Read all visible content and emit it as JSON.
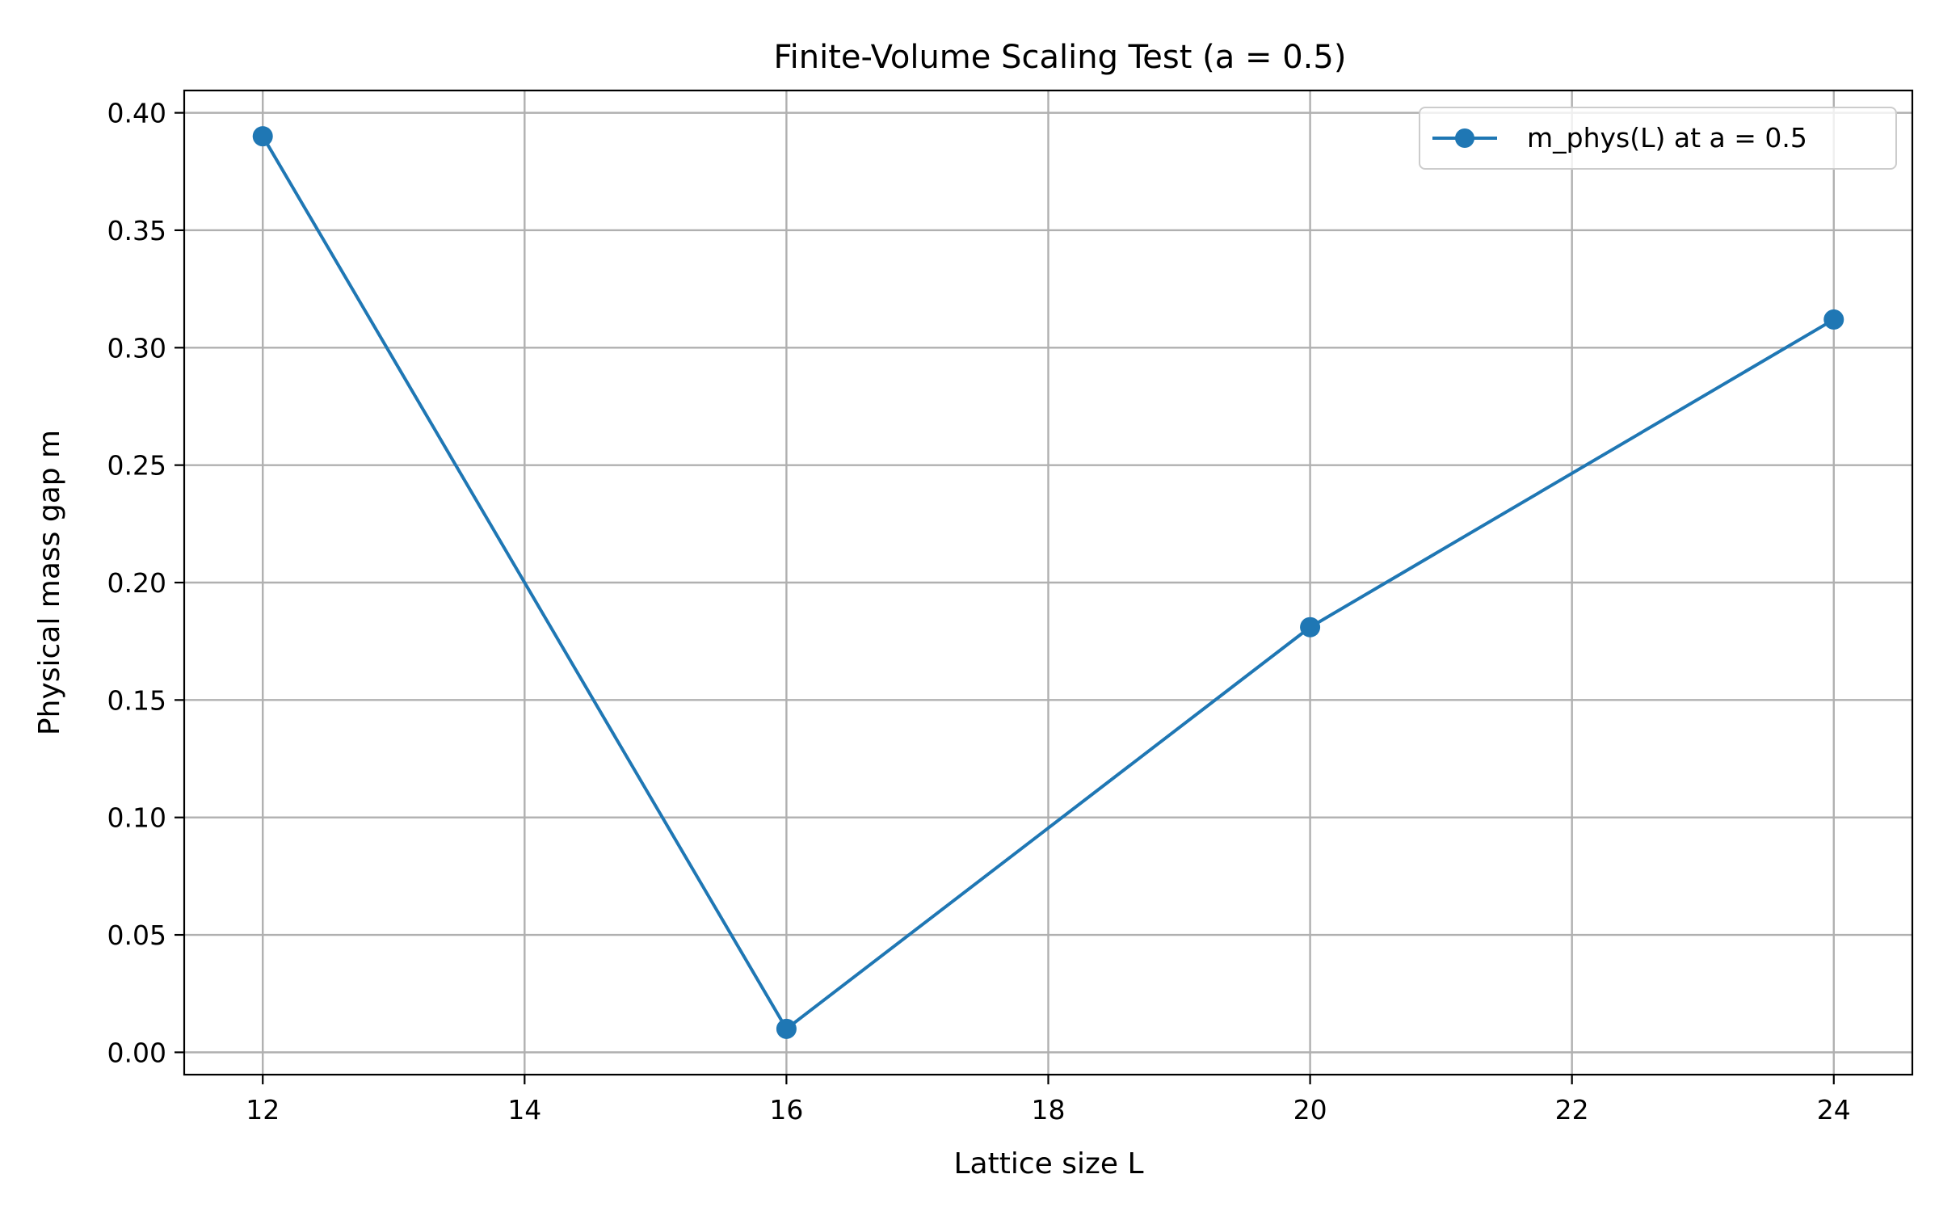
{
  "chart_data": {
    "type": "line",
    "title": "Finite-Volume Scaling Test (a = 0.5)",
    "xlabel": "Lattice size L",
    "ylabel": "Physical mass gap m",
    "xlim": [
      11.4,
      24.6
    ],
    "ylim": [
      -0.0095,
      0.4095
    ],
    "xticks": [
      12,
      14,
      16,
      18,
      20,
      22,
      24
    ],
    "yticks": [
      0.0,
      0.05,
      0.1,
      0.15,
      0.2,
      0.25,
      0.3,
      0.35,
      0.4
    ],
    "xtick_labels": [
      "12",
      "14",
      "16",
      "18",
      "20",
      "22",
      "24"
    ],
    "ytick_labels": [
      "0.00",
      "0.05",
      "0.10",
      "0.15",
      "0.20",
      "0.25",
      "0.30",
      "0.35",
      "0.40"
    ],
    "grid": true,
    "legend_position": "top-right",
    "series": [
      {
        "name": "m_phys(L) at a = 0.5",
        "color": "#1f77b4",
        "marker": "circle",
        "x": [
          12,
          16,
          20,
          24
        ],
        "y": [
          0.39,
          0.01,
          0.181,
          0.312
        ]
      }
    ]
  }
}
